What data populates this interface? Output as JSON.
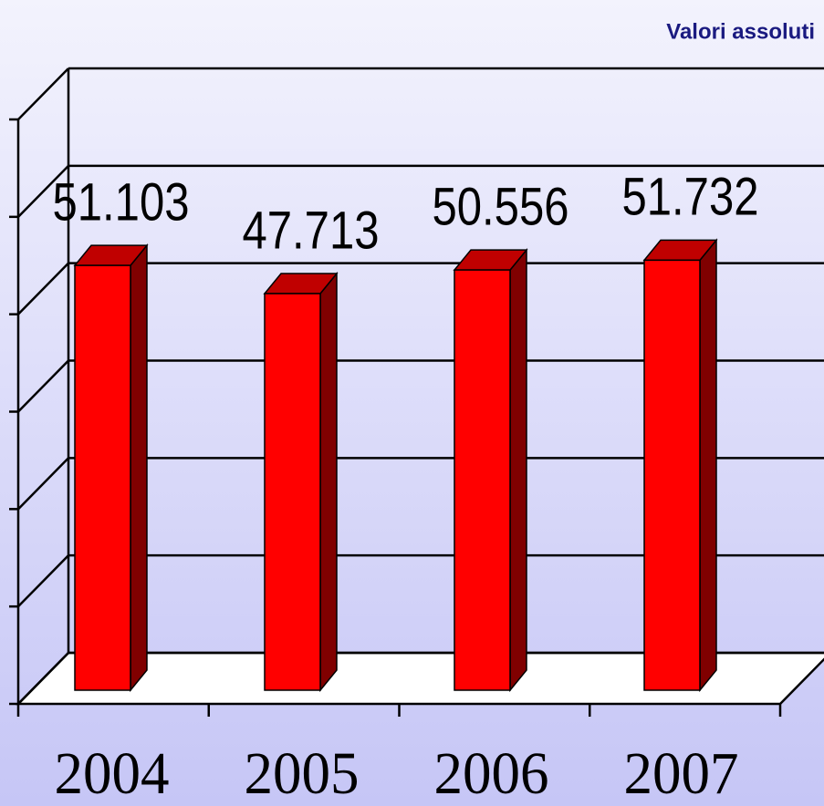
{
  "chart_data": {
    "type": "bar3d",
    "title": "Valori assoluti",
    "categories": [
      "2004",
      "2005",
      "2006",
      "2007"
    ],
    "values": [
      51103,
      47713,
      50556,
      51732
    ],
    "value_labels": [
      "51.103",
      "47.713",
      "50.556",
      "51.732"
    ],
    "color": "#ff0000",
    "ylim": [
      0,
      60000
    ],
    "yticks": [
      0,
      10000,
      20000,
      30000,
      40000,
      50000,
      60000
    ],
    "grid": true
  }
}
